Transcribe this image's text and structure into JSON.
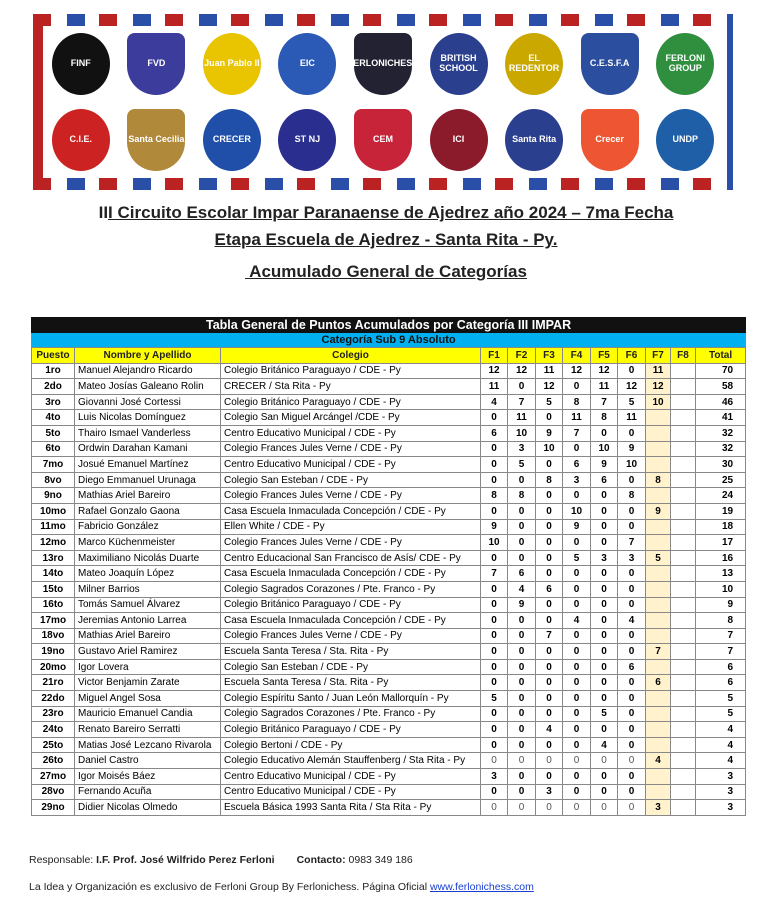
{
  "banner": {
    "logos": [
      {
        "text": "FINF",
        "color": "#111"
      },
      {
        "text": "FVD",
        "color": "#3c3c9c"
      },
      {
        "text": "Juan Pablo II",
        "color": "#e8c500"
      },
      {
        "text": "EIC",
        "color": "#2a5ab5"
      },
      {
        "text": "FERLONICHESS",
        "color": "#223"
      },
      {
        "text": "BRITISH SCHOOL",
        "color": "#2b3f8f"
      },
      {
        "text": "EL REDENTOR",
        "color": "#caa800"
      },
      {
        "text": "C.E.S.F.A",
        "color": "#2b4f9e"
      },
      {
        "text": "FERLONI GROUP",
        "color": "#2f8f3f"
      },
      {
        "text": "C.I.E.",
        "color": "#c22"
      },
      {
        "text": "Santa Cecilia",
        "color": "#b08a3a"
      },
      {
        "text": "CRECER",
        "color": "#1f4fa8"
      },
      {
        "text": "ST NJ",
        "color": "#2a2f8f"
      },
      {
        "text": "CEM",
        "color": "#c7243a"
      },
      {
        "text": "ICI",
        "color": "#8b1a2a"
      },
      {
        "text": "Santa Rita",
        "color": "#2b3f8f"
      },
      {
        "text": "Crecer",
        "color": "#e53"
      },
      {
        "text": "UNDP",
        "color": "#1f5fa8"
      }
    ]
  },
  "header": {
    "line1_prefix": "II",
    "line1": "I Circuito Escolar Impar Paranaense de Ajedrez año 2024 – 7ma Fecha",
    "line2": "Etapa Escuela de Ajedrez - Santa Rita - Py.",
    "line3": " Acumulado General de Categorías"
  },
  "table": {
    "title": "Tabla General de Puntos Acumulados por Categoría III IMPAR",
    "category": "Categoría Sub 9 Absoluto",
    "columns": [
      "Puesto",
      "Nombre y Apellido",
      "Colegio",
      "F1",
      "F2",
      "F3",
      "F4",
      "F5",
      "F6",
      "F7",
      "F8",
      "Total"
    ],
    "rows": [
      [
        "1ro",
        "Manuel Alejandro Ricardo",
        "Colegio Británico Paraguayo / CDE - Py",
        "12",
        "12",
        "11",
        "12",
        "12",
        "0",
        "11",
        "",
        "70"
      ],
      [
        "2do",
        "Mateo Josías Galeano Rolin",
        "CRECER / Sta Rita - Py",
        "11",
        "0",
        "12",
        "0",
        "11",
        "12",
        "12",
        "",
        "58"
      ],
      [
        "3ro",
        "Giovanni José Cortessi",
        "Colegio Británico Paraguayo / CDE - Py",
        "4",
        "7",
        "5",
        "8",
        "7",
        "5",
        "10",
        "",
        "46"
      ],
      [
        "4to",
        "Luis Nicolas Domínguez",
        "Colegio San Miguel Arcángel /CDE - Py",
        "0",
        "11",
        "0",
        "11",
        "8",
        "11",
        "",
        "",
        "41"
      ],
      [
        "5to",
        "Thairo Ismael Vanderless",
        "Centro Educativo Municipal / CDE - Py",
        "6",
        "10",
        "9",
        "7",
        "0",
        "0",
        "",
        "",
        "32"
      ],
      [
        "6to",
        "Ordwin Darahan Kamani",
        "Colegio Frances Jules Verne / CDE - Py",
        "0",
        "3",
        "10",
        "0",
        "10",
        "9",
        "",
        "",
        "32"
      ],
      [
        "7mo",
        "Josué Emanuel Martínez",
        "Centro Educativo Municipal / CDE - Py",
        "0",
        "5",
        "0",
        "6",
        "9",
        "10",
        "",
        "",
        "30"
      ],
      [
        "8vo",
        "Diego Emmanuel Urunaga",
        "Colegio San Esteban / CDE - Py",
        "0",
        "0",
        "8",
        "3",
        "6",
        "0",
        "8",
        "",
        "25"
      ],
      [
        "9no",
        "Mathias Ariel Bareiro",
        "Colegio Frances Jules Verne / CDE - Py",
        "8",
        "8",
        "0",
        "0",
        "0",
        "8",
        "",
        "",
        "24"
      ],
      [
        "10mo",
        "Rafael Gonzalo Gaona",
        "Casa Escuela Inmaculada Concepción / CDE - Py",
        "0",
        "0",
        "0",
        "10",
        "0",
        "0",
        "9",
        "",
        "19"
      ],
      [
        "11mo",
        "Fabricio González",
        "Ellen White / CDE - Py",
        "9",
        "0",
        "0",
        "9",
        "0",
        "0",
        "",
        "",
        "18"
      ],
      [
        "12mo",
        "Marco Küchenmeister",
        "Colegio Frances Jules Verne / CDE - Py",
        "10",
        "0",
        "0",
        "0",
        "0",
        "7",
        "",
        "",
        "17"
      ],
      [
        "13ro",
        "Maximiliano Nicolás Duarte",
        "Centro Educacional San Francisco de Asís/ CDE - Py",
        "0",
        "0",
        "0",
        "5",
        "3",
        "3",
        "5",
        "",
        "16"
      ],
      [
        "14to",
        "Mateo Joaquín López",
        "Casa Escuela Inmaculada Concepción / CDE - Py",
        "7",
        "6",
        "0",
        "0",
        "0",
        "0",
        "",
        "",
        "13"
      ],
      [
        "15to",
        "Milner Barrios",
        "Colegio Sagrados Corazones / Pte. Franco - Py",
        "0",
        "4",
        "6",
        "0",
        "0",
        "0",
        "",
        "",
        "10"
      ],
      [
        "16to",
        "Tomás Samuel Álvarez",
        "Colegio Británico Paraguayo / CDE - Py",
        "0",
        "9",
        "0",
        "0",
        "0",
        "0",
        "",
        "",
        "9"
      ],
      [
        "17mo",
        "Jeremias Antonio Larrea",
        "Casa Escuela Inmaculada Concepción / CDE - Py",
        "0",
        "0",
        "0",
        "4",
        "0",
        "4",
        "",
        "",
        "8"
      ],
      [
        "18vo",
        "Mathias Ariel Bareiro",
        "Colegio Frances Jules Verne / CDE - Py",
        "0",
        "0",
        "7",
        "0",
        "0",
        "0",
        "",
        "",
        "7"
      ],
      [
        "19no",
        "Gustavo Ariel Ramirez",
        "Escuela Santa Teresa / Sta. Rita - Py",
        "0",
        "0",
        "0",
        "0",
        "0",
        "0",
        "7",
        "",
        "7"
      ],
      [
        "20mo",
        "Igor Lovera",
        "Colegio San Esteban / CDE - Py",
        "0",
        "0",
        "0",
        "0",
        "0",
        "6",
        "",
        "",
        "6"
      ],
      [
        "21ro",
        "Victor Benjamin Zarate",
        "Escuela Santa Teresa / Sta. Rita - Py",
        "0",
        "0",
        "0",
        "0",
        "0",
        "0",
        "6",
        "",
        "6"
      ],
      [
        "22do",
        "Miguel Angel Sosa",
        "Colegio Espíritu Santo / Juan León Mallorquín - Py",
        "5",
        "0",
        "0",
        "0",
        "0",
        "0",
        "",
        "",
        "5"
      ],
      [
        "23ro",
        "Mauricio Emanuel Candia",
        "Colegio Sagrados Corazones / Pte. Franco - Py",
        "0",
        "0",
        "0",
        "0",
        "5",
        "0",
        "",
        "",
        "5"
      ],
      [
        "24to",
        "Renato Bareiro Serratti",
        "Colegio Británico Paraguayo / CDE - Py",
        "0",
        "0",
        "4",
        "0",
        "0",
        "0",
        "",
        "",
        "4"
      ],
      [
        "25to",
        "Matias José Lezcano Rivarola",
        "Colegio Bertoni / CDE - Py",
        "0",
        "0",
        "0",
        "0",
        "4",
        "0",
        "",
        "",
        "4"
      ],
      [
        "26to",
        "Daniel Castro",
        "Colegio Educativo Alemán Stauffenberg / Sta Rita - Py",
        "0",
        "0",
        "0",
        "0",
        "0",
        "0",
        "4",
        "",
        "4"
      ],
      [
        "27mo",
        "Igor Moisés Báez",
        "Centro Educativo Municipal / CDE - Py",
        "3",
        "0",
        "0",
        "0",
        "0",
        "0",
        "",
        "",
        "3"
      ],
      [
        "28vo",
        "Fernando Acuña",
        "Centro Educativo Municipal / CDE - Py",
        "0",
        "0",
        "3",
        "0",
        "0",
        "0",
        "",
        "",
        "3"
      ],
      [
        "29no",
        "Didier Nicolas Olmedo",
        "Escuela Básica 1993 Santa Rita / Sta Rita - Py",
        "0",
        "0",
        "0",
        "0",
        "0",
        "0",
        "3",
        "",
        "3"
      ]
    ]
  },
  "footer": {
    "resp_label": "Responsable: ",
    "resp_name": "I.F. Prof. José Wilfrido Perez Ferloni",
    "contact_label": "Contacto:",
    "contact_value": " 0983 349 186",
    "note": "La Idea y Organización es exclusivo de Ferloni Group By Ferlonichess. Página Oficial ",
    "link": "www.ferlonichess.com"
  },
  "colors": {
    "title_bar": "#111111",
    "category_bar": "#00b0f0",
    "header_row": "#ffff00",
    "f7_cell": "#fff2cc"
  }
}
